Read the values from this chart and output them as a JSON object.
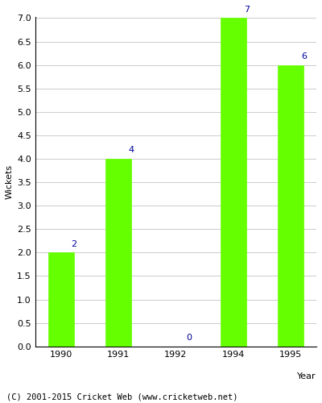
{
  "years": [
    "1990",
    "1991",
    "1992",
    "1994",
    "1995"
  ],
  "values": [
    2,
    4,
    0,
    7,
    6
  ],
  "bar_color": "#66ff00",
  "bar_edge_color": "#66ff00",
  "label_color": "#000099",
  "ylabel": "Wickets",
  "xlabel": "Year",
  "ylim_max": 7.0,
  "yticks": [
    0.0,
    0.5,
    1.0,
    1.5,
    2.0,
    2.5,
    3.0,
    3.5,
    4.0,
    4.5,
    5.0,
    5.5,
    6.0,
    6.5,
    7.0
  ],
  "label_fontsize": 8,
  "axis_fontsize": 8,
  "tick_fontsize": 8,
  "footer_text": "(C) 2001-2015 Cricket Web (www.cricketweb.net)",
  "footer_fontsize": 7.5,
  "background_color": "#ffffff",
  "grid_color": "#cccccc",
  "bar_width": 0.45
}
